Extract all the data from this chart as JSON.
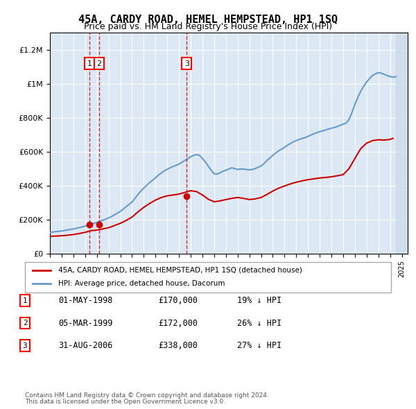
{
  "title": "45A, CARDY ROAD, HEMEL HEMPSTEAD, HP1 1SQ",
  "subtitle": "Price paid vs. HM Land Registry's House Price Index (HPI)",
  "legend_property": "45A, CARDY ROAD, HEMEL HEMPSTEAD, HP1 1SQ (detached house)",
  "legend_hpi": "HPI: Average price, detached house, Dacorum",
  "footer_line1": "Contains HM Land Registry data © Crown copyright and database right 2024.",
  "footer_line2": "This data is licensed under the Open Government Licence v3.0.",
  "transactions": [
    {
      "num": 1,
      "date": "01-MAY-1998",
      "price": "£170,000",
      "hpi": "19% ↓ HPI"
    },
    {
      "num": 2,
      "date": "05-MAR-1999",
      "price": "£172,000",
      "hpi": "26% ↓ HPI"
    },
    {
      "num": 3,
      "date": "31-AUG-2006",
      "price": "£338,000",
      "hpi": "27% ↓ HPI"
    }
  ],
  "sale_years": [
    1998.37,
    1999.18,
    2006.66
  ],
  "sale_prices": [
    170000,
    172000,
    338000
  ],
  "property_color": "#cc0000",
  "hpi_color": "#6699cc",
  "background_color": "#dce9f5",
  "hatch_color": "#c8d8e8",
  "ylim": [
    0,
    1300000
  ],
  "xlim_start": 1995.0,
  "xlim_end": 2025.5,
  "hpi_years": [
    1995,
    1995.25,
    1995.5,
    1995.75,
    1996,
    1996.25,
    1996.5,
    1996.75,
    1997,
    1997.25,
    1997.5,
    1997.75,
    1998,
    1998.25,
    1998.5,
    1998.75,
    1999,
    1999.25,
    1999.5,
    1999.75,
    2000,
    2000.25,
    2000.5,
    2000.75,
    2001,
    2001.25,
    2001.5,
    2001.75,
    2002,
    2002.25,
    2002.5,
    2002.75,
    2003,
    2003.25,
    2003.5,
    2003.75,
    2004,
    2004.25,
    2004.5,
    2004.75,
    2005,
    2005.25,
    2005.5,
    2005.75,
    2006,
    2006.25,
    2006.5,
    2006.75,
    2007,
    2007.25,
    2007.5,
    2007.75,
    2008,
    2008.25,
    2008.5,
    2008.75,
    2009,
    2009.25,
    2009.5,
    2009.75,
    2010,
    2010.25,
    2010.5,
    2010.75,
    2011,
    2011.25,
    2011.5,
    2011.75,
    2012,
    2012.25,
    2012.5,
    2012.75,
    2013,
    2013.25,
    2013.5,
    2013.75,
    2014,
    2014.25,
    2014.5,
    2014.75,
    2015,
    2015.25,
    2015.5,
    2015.75,
    2016,
    2016.25,
    2016.5,
    2016.75,
    2017,
    2017.25,
    2017.5,
    2017.75,
    2018,
    2018.25,
    2018.5,
    2018.75,
    2019,
    2019.25,
    2019.5,
    2019.75,
    2020,
    2020.25,
    2020.5,
    2020.75,
    2021,
    2021.25,
    2021.5,
    2021.75,
    2022,
    2022.25,
    2022.5,
    2022.75,
    2023,
    2023.25,
    2023.5,
    2023.75,
    2024,
    2024.25,
    2024.5
  ],
  "hpi_values": [
    125000,
    127000,
    129000,
    131000,
    133000,
    136000,
    139000,
    142000,
    145000,
    149000,
    153000,
    157000,
    161000,
    166000,
    172000,
    178000,
    184000,
    190000,
    196000,
    202000,
    210000,
    218000,
    228000,
    238000,
    248000,
    262000,
    276000,
    289000,
    303000,
    325000,
    347000,
    368000,
    385000,
    402000,
    418000,
    432000,
    446000,
    462000,
    475000,
    487000,
    496000,
    505000,
    513000,
    519000,
    527000,
    537000,
    548000,
    558000,
    570000,
    578000,
    583000,
    578000,
    560000,
    540000,
    515000,
    490000,
    470000,
    468000,
    475000,
    485000,
    490000,
    498000,
    505000,
    500000,
    495000,
    498000,
    497000,
    495000,
    493000,
    495000,
    500000,
    508000,
    515000,
    530000,
    548000,
    563000,
    578000,
    592000,
    605000,
    615000,
    625000,
    638000,
    648000,
    658000,
    665000,
    672000,
    678000,
    682000,
    690000,
    698000,
    705000,
    712000,
    718000,
    722000,
    728000,
    733000,
    738000,
    742000,
    748000,
    755000,
    762000,
    768000,
    790000,
    830000,
    878000,
    920000,
    955000,
    985000,
    1010000,
    1030000,
    1048000,
    1058000,
    1065000,
    1062000,
    1055000,
    1048000,
    1042000,
    1038000,
    1042000
  ],
  "prop_years": [
    1995,
    1995.5,
    1996,
    1996.5,
    1997,
    1997.5,
    1998,
    1998.5,
    1999,
    1999.5,
    2000,
    2000.5,
    2001,
    2001.5,
    2002,
    2002.5,
    2003,
    2003.5,
    2004,
    2004.5,
    2005,
    2005.5,
    2006,
    2006.5,
    2007,
    2007.5,
    2008,
    2008.5,
    2009,
    2009.5,
    2010,
    2010.5,
    2011,
    2011.5,
    2012,
    2012.5,
    2013,
    2013.5,
    2014,
    2014.5,
    2015,
    2015.5,
    2016,
    2016.5,
    2017,
    2017.5,
    2018,
    2018.5,
    2019,
    2019.5,
    2020,
    2020.5,
    2021,
    2021.5,
    2022,
    2022.5,
    2023,
    2023.5,
    2024,
    2024.25
  ],
  "prop_values": [
    102000,
    103000,
    105000,
    108000,
    112000,
    118000,
    125000,
    135000,
    138000,
    145000,
    152000,
    165000,
    178000,
    195000,
    215000,
    245000,
    272000,
    295000,
    315000,
    330000,
    340000,
    345000,
    350000,
    360000,
    370000,
    365000,
    345000,
    320000,
    305000,
    310000,
    318000,
    325000,
    330000,
    325000,
    318000,
    322000,
    330000,
    348000,
    368000,
    385000,
    398000,
    410000,
    420000,
    428000,
    435000,
    440000,
    445000,
    448000,
    452000,
    458000,
    465000,
    500000,
    560000,
    618000,
    650000,
    665000,
    670000,
    668000,
    672000,
    678000
  ]
}
